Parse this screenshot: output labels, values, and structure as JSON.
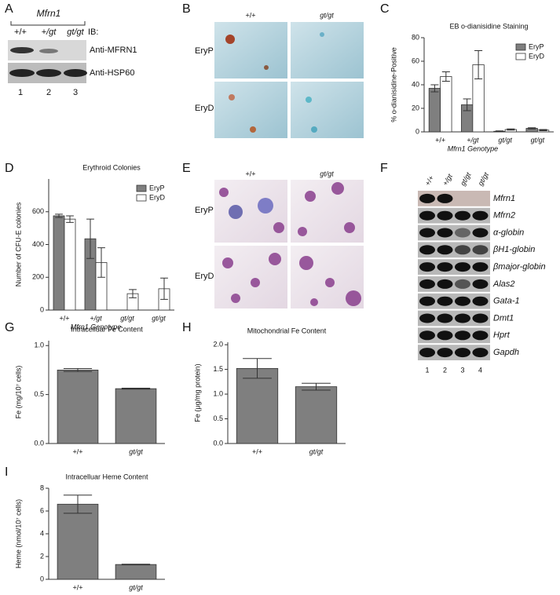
{
  "panel_labels": [
    "A",
    "B",
    "C",
    "D",
    "E",
    "F",
    "G",
    "H",
    "I"
  ],
  "blot_a": {
    "header": "Mfrn1",
    "genotypes": [
      "+/+",
      "+/gt",
      "gt/gt"
    ],
    "ib": "IB:",
    "rows": [
      "Anti-MFRN1",
      "Anti-HSP60"
    ],
    "lanes": [
      "1",
      "2",
      "3"
    ]
  },
  "micrographs_b": {
    "columns": [
      "+/+",
      "gt/gt"
    ],
    "rows": [
      "EryP",
      "EryD"
    ]
  },
  "micrographs_e": {
    "columns": [
      "+/+",
      "gt/gt"
    ],
    "rows": [
      "EryP",
      "EryD"
    ]
  },
  "blot_f": {
    "genotypes": [
      "+/+",
      "+/gt",
      "gt/gt",
      "gt/gt"
    ],
    "rows": [
      "Mfrn1",
      "Mfrn2",
      "α-globin",
      "βH1-globin",
      "βmajor-globin",
      "Alas2",
      "Gata-1",
      "Dmt1",
      "Hprt",
      "Gapdh"
    ],
    "lanes": [
      "1",
      "2",
      "3",
      "4"
    ]
  },
  "chart_data": [
    {
      "type": "bar",
      "title": "EB o-dianisidine Staining",
      "ylabel": "% o-dianisidine-Positive",
      "xlabel": "Mfrn1 Genotype",
      "categories": [
        "+/+",
        "+/gt",
        "gt/gt",
        "gt/gt"
      ],
      "series": [
        {
          "name": "EryP",
          "color": "#7f7f7f",
          "values": [
            37,
            23,
            0.5,
            3
          ],
          "errors": [
            3,
            5,
            0.3,
            0.5
          ]
        },
        {
          "name": "EryD",
          "color": "#ffffff",
          "values": [
            47,
            57,
            2,
            1.5
          ],
          "errors": [
            4,
            12,
            0.5,
            0.5
          ]
        }
      ],
      "ylim": [
        0,
        80
      ],
      "yticks": [
        0,
        20,
        40,
        60,
        80
      ],
      "legend": "top-right"
    },
    {
      "type": "bar",
      "title": "Erythroid Colonies",
      "ylabel": "Number of CFU-E colonies",
      "xlabel": "Mfrn1 Genotype",
      "categories": [
        "+/+",
        "+/gt",
        "gt/gt",
        "gt/gt"
      ],
      "series": [
        {
          "name": "EryP",
          "color": "#7f7f7f",
          "values": [
            575,
            435,
            0,
            0
          ],
          "errors": [
            10,
            120,
            0,
            0
          ]
        },
        {
          "name": "EryD",
          "color": "#ffffff",
          "values": [
            555,
            290,
            100,
            130
          ],
          "errors": [
            20,
            90,
            25,
            65
          ]
        }
      ],
      "ylim": [
        0,
        800
      ],
      "yticks": [
        0,
        200,
        400,
        600
      ],
      "legend": "top-right"
    },
    {
      "type": "bar",
      "title": "Intracelluar Fe Content",
      "ylabel": "Fe (mg/10⁷ cells)",
      "categories": [
        "+/+",
        "gt/gt"
      ],
      "series": [
        {
          "color": "#7f7f7f",
          "values": [
            0.75,
            0.56
          ],
          "errors": [
            0.015,
            0.005
          ]
        }
      ],
      "ylim": [
        0,
        1.05
      ],
      "yticks": [
        {
          "value": 0,
          "label": "0.0"
        },
        {
          "value": 0.5,
          "label": "0.5"
        },
        {
          "value": 1,
          "label": "1.0"
        }
      ]
    },
    {
      "type": "bar",
      "title": "Mitochondrial Fe Content",
      "ylabel": "Fe (μg/mg protein)",
      "categories": [
        "+/+",
        "gt/gt"
      ],
      "series": [
        {
          "color": "#7f7f7f",
          "values": [
            1.52,
            1.15
          ],
          "errors": [
            0.2,
            0.07
          ]
        }
      ],
      "ylim": [
        0,
        2.05
      ],
      "yticks": [
        {
          "value": 0,
          "label": "0.0"
        },
        {
          "value": 0.5,
          "label": "0.5"
        },
        {
          "value": 1,
          "label": "1.0"
        },
        {
          "value": 1.5,
          "label": "1.5"
        },
        {
          "value": 2,
          "label": "2.0"
        }
      ]
    },
    {
      "type": "bar",
      "title": "Intracelluar Heme Content",
      "ylabel": "Heme (nmol/10⁷ cells)",
      "categories": [
        "+/+",
        "gt/gt"
      ],
      "series": [
        {
          "color": "#7f7f7f",
          "values": [
            6.6,
            1.3
          ],
          "errors": [
            0.8,
            0.03
          ]
        }
      ],
      "ylim": [
        0,
        8
      ],
      "yticks": [
        0,
        2,
        4,
        6,
        8
      ]
    }
  ]
}
